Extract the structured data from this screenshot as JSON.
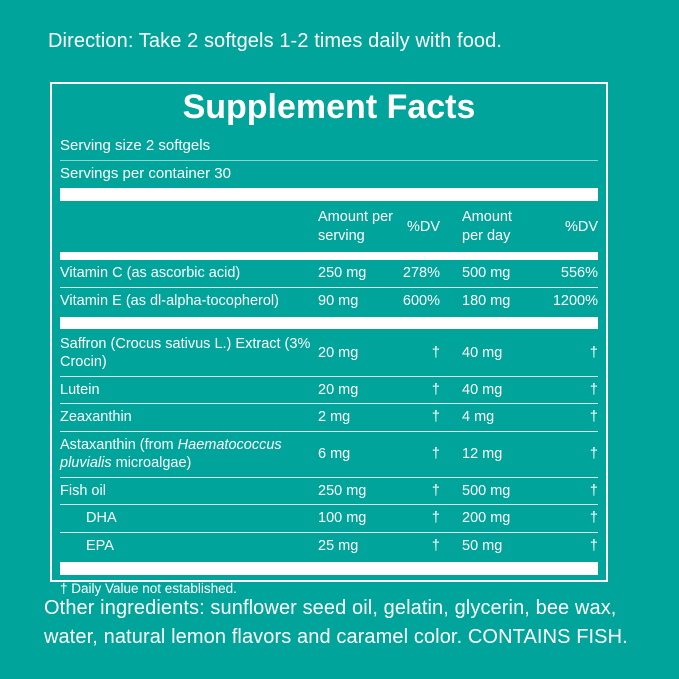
{
  "page": {
    "background_color": "#01a49a",
    "text_color": "#ffffff"
  },
  "direction_text": "Direction: Take 2 softgels 1-2 times daily with food.",
  "panel": {
    "title": "Supplement Facts",
    "serving_size": "Serving size 2 softgels",
    "servings_per_container": "Servings per container 30",
    "columns": [
      "Amount per serving",
      "%DV",
      "Amount per day",
      "%DV"
    ],
    "rows": [
      {
        "name_parts": [
          {
            "text": "Vitamin C (as ascorbic acid)",
            "italic": false
          }
        ],
        "amount_per_serving": "250 mg",
        "dv_serving": "278%",
        "amount_per_day": "500 mg",
        "dv_day": "556%",
        "indent": false,
        "bar_after": false
      },
      {
        "name_parts": [
          {
            "text": "Vitamin E (as dl-alpha-tocopherol)",
            "italic": false
          }
        ],
        "amount_per_serving": "90 mg",
        "dv_serving": "600%",
        "amount_per_day": "180 mg",
        "dv_day": "1200%",
        "indent": false,
        "bar_after": true
      },
      {
        "name_parts": [
          {
            "text": "Saffron (Crocus sativus L.) Extract (3% Crocin)",
            "italic": false
          }
        ],
        "amount_per_serving": "20 mg",
        "dv_serving": "†",
        "amount_per_day": "40 mg",
        "dv_day": "†",
        "indent": false,
        "bar_after": false
      },
      {
        "name_parts": [
          {
            "text": "Lutein",
            "italic": false
          }
        ],
        "amount_per_serving": "20 mg",
        "dv_serving": "†",
        "amount_per_day": "40 mg",
        "dv_day": "†",
        "indent": false,
        "bar_after": false
      },
      {
        "name_parts": [
          {
            "text": "Zeaxanthin",
            "italic": false
          }
        ],
        "amount_per_serving": "2 mg",
        "dv_serving": "†",
        "amount_per_day": "4 mg",
        "dv_day": "†",
        "indent": false,
        "bar_after": false
      },
      {
        "name_parts": [
          {
            "text": "Astaxanthin (from ",
            "italic": false
          },
          {
            "text": "Haematococcus pluvialis",
            "italic": true
          },
          {
            "text": " microalgae)",
            "italic": false
          }
        ],
        "amount_per_serving": "6 mg",
        "dv_serving": "†",
        "amount_per_day": "12 mg",
        "dv_day": "†",
        "indent": false,
        "bar_after": false
      },
      {
        "name_parts": [
          {
            "text": "Fish oil",
            "italic": false
          }
        ],
        "amount_per_serving": "250 mg",
        "dv_serving": "†",
        "amount_per_day": "500 mg",
        "dv_day": "†",
        "indent": false,
        "bar_after": false
      },
      {
        "name_parts": [
          {
            "text": "DHA",
            "italic": false
          }
        ],
        "amount_per_serving": "100 mg",
        "dv_serving": "†",
        "amount_per_day": "200 mg",
        "dv_day": "†",
        "indent": true,
        "bar_after": false
      },
      {
        "name_parts": [
          {
            "text": "EPA",
            "italic": false
          }
        ],
        "amount_per_serving": "25 mg",
        "dv_serving": "†",
        "amount_per_day": "50 mg",
        "dv_day": "†",
        "indent": true,
        "bar_after": false
      }
    ],
    "footnote": "† Daily Value not established."
  },
  "other_ingredients_text": "Other ingredients: sunflower seed oil, gelatin, glycerin, bee wax, water, natural lemon flavors and caramel color. CONTAINS FISH."
}
